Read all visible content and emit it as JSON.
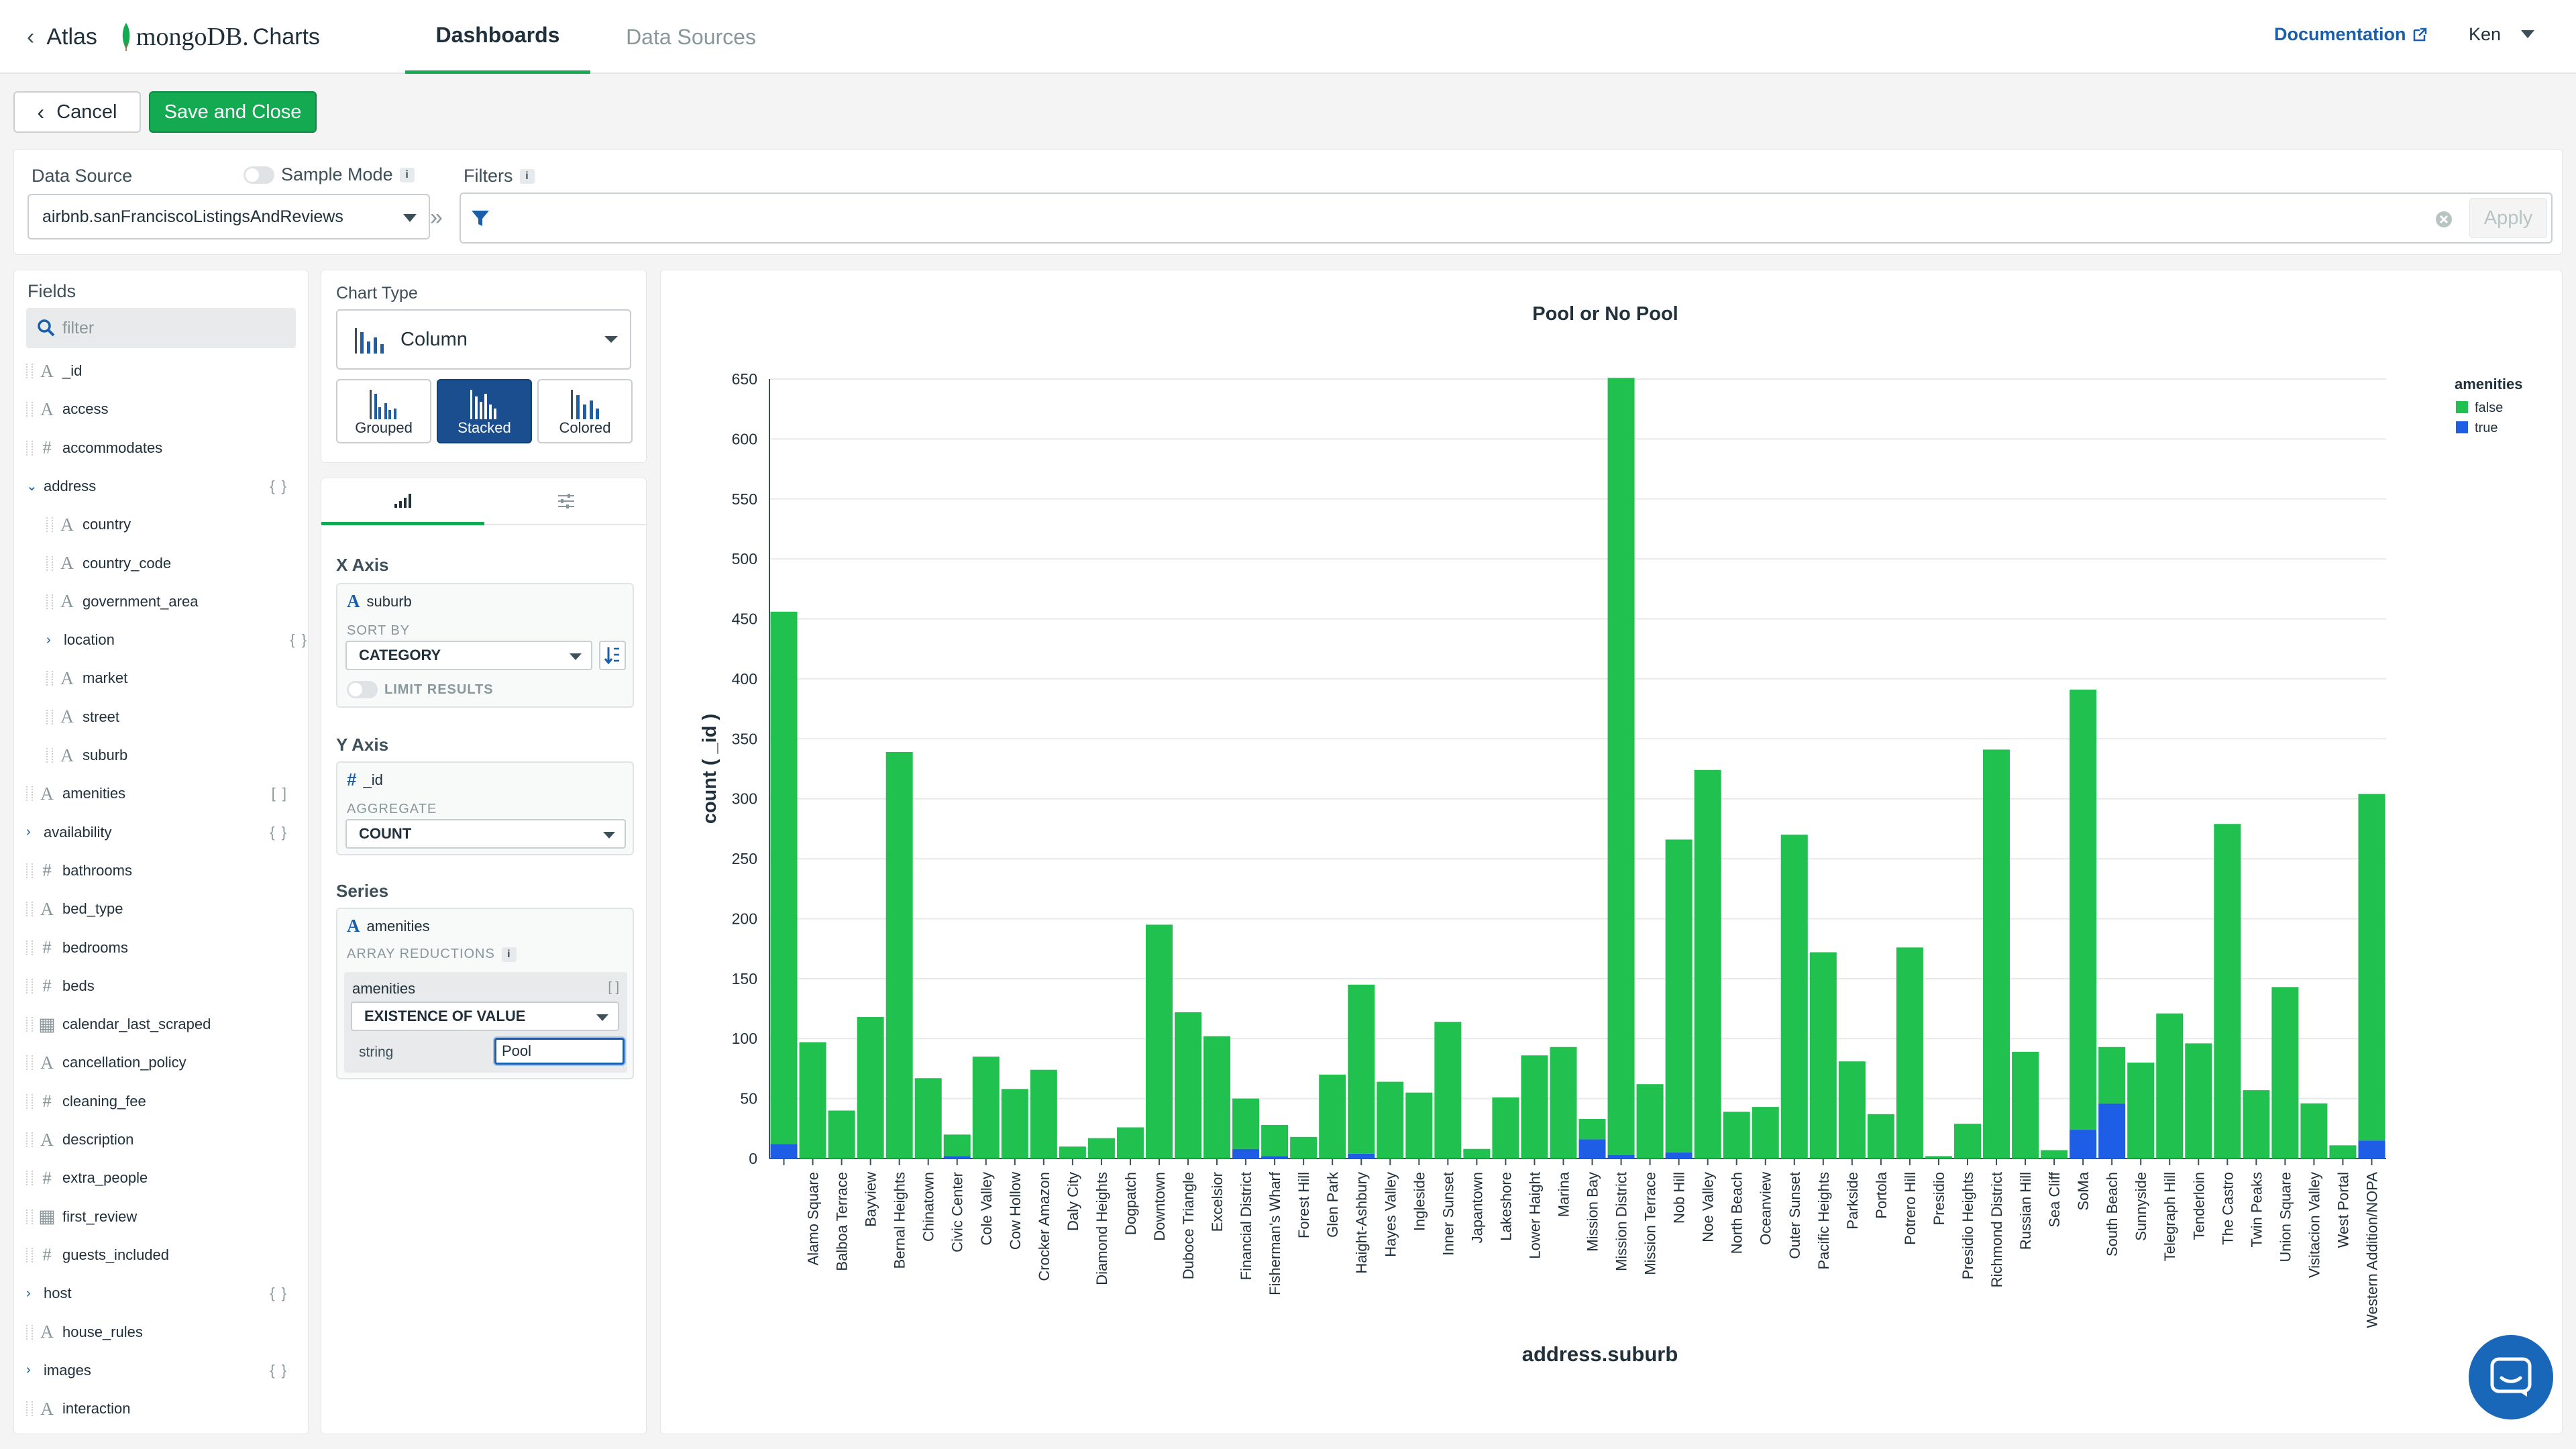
{
  "nav": {
    "back_label": "Atlas",
    "brand_db": "mongoDB.",
    "brand_app": "Charts",
    "tabs": [
      "Dashboards",
      "Data Sources"
    ],
    "docs": "Documentation",
    "user": "Ken"
  },
  "actions": {
    "cancel": "Cancel",
    "save": "Save and Close"
  },
  "datasource": {
    "label": "Data Source",
    "sample_mode": "Sample Mode",
    "value": "airbnb.sanFranciscoListingsAndReviews",
    "filters_label": "Filters",
    "apply": "Apply"
  },
  "fields": {
    "title": "Fields",
    "filter_placeholder": "filter",
    "items": [
      {
        "name": "_id",
        "type": "A",
        "indent": 0
      },
      {
        "name": "access",
        "type": "A",
        "indent": 0
      },
      {
        "name": "accommodates",
        "type": "#",
        "indent": 0
      },
      {
        "name": "address",
        "type": "obj-open",
        "indent": 0,
        "brackets": "{ }"
      },
      {
        "name": "country",
        "type": "A",
        "indent": 1
      },
      {
        "name": "country_code",
        "type": "A",
        "indent": 1
      },
      {
        "name": "government_area",
        "type": "A",
        "indent": 1
      },
      {
        "name": "location",
        "type": "obj",
        "indent": 1,
        "brackets": "{ }"
      },
      {
        "name": "market",
        "type": "A",
        "indent": 1
      },
      {
        "name": "street",
        "type": "A",
        "indent": 1
      },
      {
        "name": "suburb",
        "type": "A",
        "indent": 1
      },
      {
        "name": "amenities",
        "type": "A",
        "indent": 0,
        "brackets": "[ ]"
      },
      {
        "name": "availability",
        "type": "obj",
        "indent": 0,
        "brackets": "{ }"
      },
      {
        "name": "bathrooms",
        "type": "#",
        "indent": 0
      },
      {
        "name": "bed_type",
        "type": "A",
        "indent": 0
      },
      {
        "name": "bedrooms",
        "type": "#",
        "indent": 0
      },
      {
        "name": "beds",
        "type": "#",
        "indent": 0
      },
      {
        "name": "calendar_last_scraped",
        "type": "date",
        "indent": 0
      },
      {
        "name": "cancellation_policy",
        "type": "A",
        "indent": 0
      },
      {
        "name": "cleaning_fee",
        "type": "#",
        "indent": 0
      },
      {
        "name": "description",
        "type": "A",
        "indent": 0
      },
      {
        "name": "extra_people",
        "type": "#",
        "indent": 0
      },
      {
        "name": "first_review",
        "type": "date",
        "indent": 0
      },
      {
        "name": "guests_included",
        "type": "#",
        "indent": 0
      },
      {
        "name": "host",
        "type": "obj",
        "indent": 0,
        "brackets": "{ }"
      },
      {
        "name": "house_rules",
        "type": "A",
        "indent": 0
      },
      {
        "name": "images",
        "type": "obj",
        "indent": 0,
        "brackets": "{ }"
      },
      {
        "name": "interaction",
        "type": "A",
        "indent": 0
      }
    ]
  },
  "config": {
    "chart_type_label": "Chart Type",
    "chart_type": "Column",
    "subtypes": [
      "Grouped",
      "Stacked",
      "Colored"
    ],
    "x_axis": {
      "label": "X Axis",
      "field": "suburb",
      "sort_by_label": "SORT BY",
      "sort_by": "CATEGORY",
      "limit": "LIMIT RESULTS"
    },
    "y_axis": {
      "label": "Y Axis",
      "field": "_id",
      "aggregate_label": "AGGREGATE",
      "aggregate": "COUNT"
    },
    "series": {
      "label": "Series",
      "field": "amenities",
      "reductions_label": "ARRAY REDUCTIONS",
      "reduction_field": "amenities",
      "reduction": "EXISTENCE OF VALUE",
      "string_label": "string",
      "string_value": "Pool"
    }
  },
  "colors": {
    "false": "#21c150",
    "true": "#1e5ee6",
    "accent": "#13aa52"
  },
  "chart_data": {
    "type": "bar",
    "title": "Pool or No Pool",
    "xlabel": "address.suburb",
    "ylabel": "count ( _id )",
    "ylim": [
      0,
      650
    ],
    "yticks": [
      0,
      50,
      100,
      150,
      200,
      250,
      300,
      350,
      400,
      450,
      500,
      550,
      600,
      650
    ],
    "legend_title": "amenities",
    "stacked": true,
    "categories": [
      "",
      "Alamo Square",
      "Balboa Terrace",
      "Bayview",
      "Bernal Heights",
      "Chinatown",
      "Civic Center",
      "Cole Valley",
      "Cow Hollow",
      "Crocker Amazon",
      "Daly City",
      "Diamond Heights",
      "Dogpatch",
      "Downtown",
      "Duboce Triangle",
      "Excelsior",
      "Financial District",
      "Fisherman's Wharf",
      "Forest Hill",
      "Glen Park",
      "Haight-Ashbury",
      "Hayes Valley",
      "Ingleside",
      "Inner Sunset",
      "Japantown",
      "Lakeshore",
      "Lower Haight",
      "Marina",
      "Mission Bay",
      "Mission District",
      "Mission Terrace",
      "Nob Hill",
      "Noe Valley",
      "North Beach",
      "Oceanview",
      "Outer Sunset",
      "Pacific Heights",
      "Parkside",
      "Portola",
      "Potrero Hill",
      "Presidio",
      "Presidio Heights",
      "Richmond District",
      "Russian Hill",
      "Sea Cliff",
      "SoMa",
      "South Beach",
      "Sunnyside",
      "Telegraph Hill",
      "Tenderloin",
      "The Castro",
      "Twin Peaks",
      "Union Square",
      "Visitacion Valley",
      "West Portal",
      "Western Addition/NOPA"
    ],
    "series": [
      {
        "name": "false",
        "values": [
          444,
          97,
          40,
          118,
          339,
          67,
          18,
          85,
          58,
          74,
          10,
          17,
          26,
          195,
          122,
          102,
          42,
          26,
          18,
          70,
          141,
          64,
          55,
          114,
          8,
          51,
          86,
          93,
          17,
          648,
          62,
          261,
          324,
          39,
          43,
          270,
          172,
          81,
          37,
          176,
          2,
          29,
          341,
          89,
          7,
          367,
          47,
          80,
          121,
          96,
          279,
          57,
          143,
          46,
          11,
          289
        ]
      },
      {
        "name": "true",
        "values": [
          12,
          0,
          0,
          0,
          0,
          0,
          2,
          0,
          0,
          0,
          0,
          0,
          0,
          0,
          0,
          0,
          8,
          2,
          0,
          0,
          4,
          0,
          0,
          0,
          0,
          0,
          0,
          0,
          16,
          3,
          0,
          5,
          0,
          0,
          0,
          0,
          0,
          0,
          0,
          0,
          0,
          0,
          0,
          0,
          0,
          24,
          46,
          0,
          0,
          0,
          0,
          0,
          0,
          0,
          0,
          15
        ]
      }
    ]
  }
}
